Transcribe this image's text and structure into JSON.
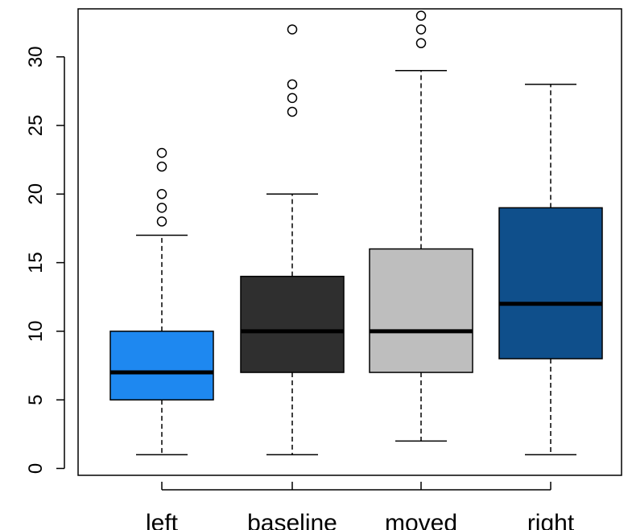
{
  "chart_data": {
    "type": "boxplot",
    "title": "",
    "xlabel": "",
    "ylabel": "",
    "ylim": [
      -0.5,
      33.5
    ],
    "y_ticks": [
      0,
      5,
      10,
      15,
      20,
      25,
      30
    ],
    "grid": false,
    "legend": "none",
    "categories": [
      "left",
      "baseline",
      "moved",
      "right"
    ],
    "boxes": [
      {
        "category": "left",
        "color": "#1e88f0",
        "whisker_low": 1,
        "q1": 5,
        "median": 7,
        "q3": 10,
        "whisker_high": 17,
        "outliers": [
          18,
          19,
          20,
          22,
          23
        ]
      },
      {
        "category": "baseline",
        "color": "#2f2f2f",
        "whisker_low": 1,
        "q1": 7,
        "median": 10,
        "q3": 14,
        "whisker_high": 20,
        "outliers": [
          26,
          27,
          28,
          32
        ]
      },
      {
        "category": "moved",
        "color": "#bebebe",
        "whisker_low": 2,
        "q1": 7,
        "median": 10,
        "q3": 16,
        "whisker_high": 29,
        "outliers": [
          31,
          32,
          33
        ]
      },
      {
        "category": "right",
        "color": "#0f4f8b",
        "whisker_low": 1,
        "q1": 8,
        "median": 12,
        "q3": 19,
        "whisker_high": 28,
        "outliers": []
      }
    ]
  }
}
